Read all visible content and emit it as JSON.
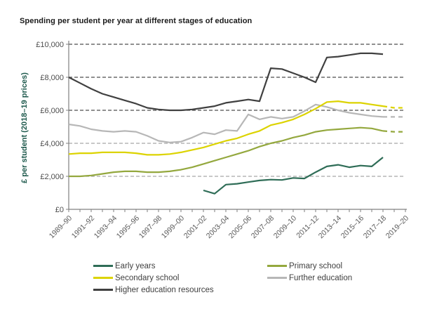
{
  "page": {
    "background": "#ffffff"
  },
  "chart_data": {
    "type": "line",
    "title": "Spending per student per year at different stages of education",
    "xlabel": "",
    "ylabel": "£ per student (2018–19 prices)",
    "ylim": [
      0,
      10000
    ],
    "grid": "horizontal-dashed",
    "legend_position": "bottom",
    "x_categories": [
      "1989–90",
      "1990–91",
      "1991–92",
      "1992–93",
      "1993–94",
      "1994–95",
      "1995–96",
      "1996–97",
      "1997–98",
      "1998–99",
      "1999–00",
      "2000–01",
      "2001–02",
      "2002–03",
      "2003–04",
      "2004–05",
      "2005–06",
      "2006–07",
      "2007–08",
      "2008–09",
      "2009–10",
      "2010–11",
      "2011–12",
      "2012–13",
      "2013–14",
      "2014–15",
      "2015–16",
      "2016–17",
      "2017–18",
      "2018–19",
      "2019–20"
    ],
    "x_label_every": 2,
    "y_ticks": [
      {
        "value": 0,
        "label": "£0",
        "grid": null
      },
      {
        "value": 2000,
        "label": "£2,000",
        "grid": "#a6a6a6"
      },
      {
        "value": 4000,
        "label": "£4,000",
        "grid": "#a6a6a6"
      },
      {
        "value": 6000,
        "label": "£6,000",
        "grid": "#4d4d4d"
      },
      {
        "value": 8000,
        "label": "£8,000",
        "grid": "#4d4d4d"
      },
      {
        "value": 10000,
        "label": "£10,000",
        "grid": "#4d4d4d"
      }
    ],
    "series": [
      {
        "name": "Early years",
        "color": "#2f6d57",
        "dash_from": null,
        "values": [
          null,
          null,
          null,
          null,
          null,
          null,
          null,
          null,
          null,
          null,
          null,
          null,
          1150,
          950,
          1500,
          1550,
          1650,
          1750,
          1800,
          1780,
          1900,
          1870,
          2250,
          2600,
          2700,
          2550,
          2650,
          2600,
          3150,
          null,
          null
        ]
      },
      {
        "name": "Primary school",
        "color": "#94a83e",
        "dash_from": 28,
        "values": [
          2000,
          2000,
          2050,
          2150,
          2250,
          2300,
          2300,
          2250,
          2250,
          2300,
          2400,
          2550,
          2750,
          2950,
          3150,
          3350,
          3550,
          3800,
          4000,
          4150,
          4350,
          4500,
          4700,
          4800,
          4850,
          4900,
          4950,
          4900,
          4750,
          4700,
          4700
        ]
      },
      {
        "name": "Secondary school",
        "color": "#dcd300",
        "dash_from": 28,
        "values": [
          3350,
          3400,
          3400,
          3450,
          3450,
          3450,
          3400,
          3300,
          3300,
          3350,
          3450,
          3600,
          3750,
          3950,
          4150,
          4300,
          4550,
          4750,
          5100,
          5250,
          5450,
          5750,
          6100,
          6500,
          6550,
          6450,
          6450,
          6350,
          6250,
          6150,
          6150
        ]
      },
      {
        "name": "Further education",
        "color": "#b7b7b7",
        "dash_from": 28,
        "values": [
          5150,
          5050,
          4850,
          4750,
          4700,
          4750,
          4700,
          4450,
          4150,
          4050,
          4100,
          4350,
          4650,
          4550,
          4800,
          4750,
          5750,
          5450,
          5600,
          5500,
          5600,
          5950,
          6350,
          6200,
          6000,
          5850,
          5750,
          5650,
          5600,
          5600,
          5600
        ]
      },
      {
        "name": "Higher education resources",
        "color": "#404040",
        "dash_from": null,
        "values": [
          8000,
          7650,
          7300,
          7000,
          6800,
          6600,
          6400,
          6150,
          6050,
          6000,
          6000,
          6050,
          6150,
          6250,
          6450,
          6550,
          6650,
          6550,
          8550,
          8500,
          8250,
          8000,
          7700,
          9200,
          9250,
          9350,
          9450,
          9450,
          9400,
          null,
          null
        ]
      }
    ],
    "draw_order": [
      3,
      2,
      1,
      0,
      4
    ],
    "axis_color": "#808080",
    "x_tick_label_color": "#595959",
    "y_tick_label_color": "#4d4d4d",
    "ylabel_color": "#1f5a4d",
    "title_color": "#1a1a1a"
  }
}
